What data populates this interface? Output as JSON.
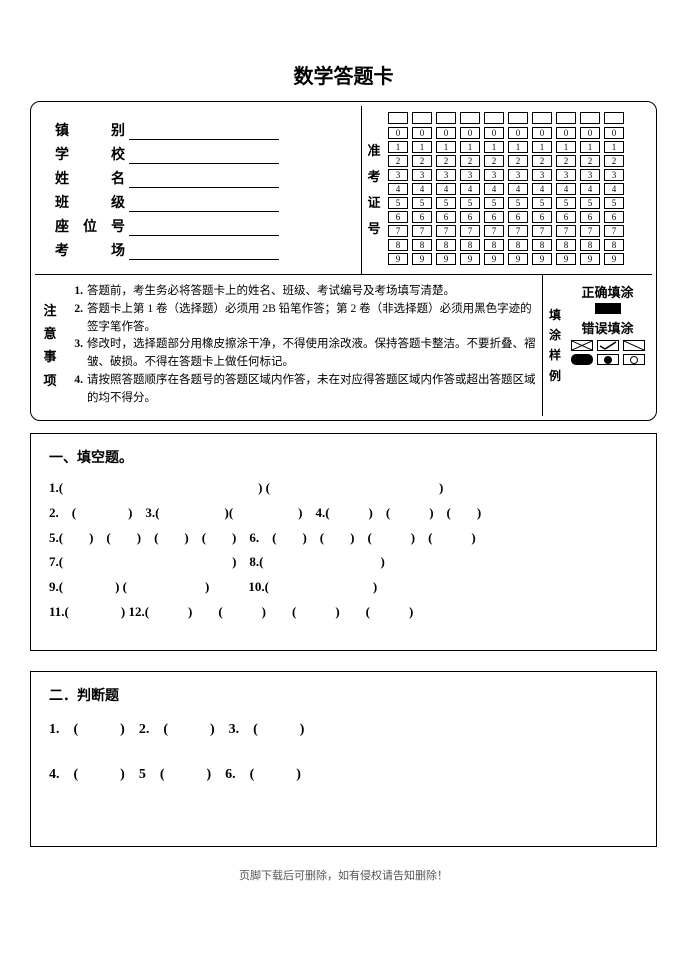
{
  "title": "数学答题卡",
  "info_labels": {
    "l1a": "镇",
    "l1b": "别",
    "l2a": "学",
    "l2b": "校",
    "l3a": "姓",
    "l3b": "名",
    "l4a": "班",
    "l4b": "级",
    "l5a": "座",
    "l5m": "位",
    "l5b": "号",
    "l6a": "考",
    "l6b": "场"
  },
  "exam_no_label": {
    "c1": "准",
    "c2": "考",
    "c3": "证",
    "c4": "号"
  },
  "bubble_digits": [
    "0",
    "1",
    "2",
    "3",
    "4",
    "5",
    "6",
    "7",
    "8",
    "9"
  ],
  "bubble_cols": 10,
  "instr_label": {
    "c1": "注",
    "c2": "意",
    "c3": "事",
    "c4": "项"
  },
  "instructions": {
    "n1": "1.",
    "t1": "答题前，考生务必将答题卡上的姓名、班级、考试编号及考场填写清楚。",
    "n2": "2.",
    "t2": "答题卡上第 1 卷（选择题）必须用 2B 铅笔作答；第 2 卷（非选择题）必须用黑色字迹的签字笔作答。",
    "n3": "3.",
    "t3": "修改时，选择题部分用橡皮擦涂干净，不得使用涂改液。保持答题卡整洁。不要折叠、褶皱、破损。不得在答题卡上做任何标记。",
    "n4": "4.",
    "t4": "请按照答题顺序在各题号的答题区域内作答，未在对应得答题区域内作答或超出答题区域的均不得分。"
  },
  "sample_label": {
    "c1": "填",
    "c2": "涂",
    "c3": "样",
    "c4": "例"
  },
  "sample": {
    "correct": "正确填涂",
    "wrong": "错误填涂"
  },
  "section1": {
    "title": "一、填空题。",
    "line1": "1.(　　　　　　　　　　　　　　　) (　　　　　　　　　　　　　)",
    "line2": "2. (　　　　) 3.(　　　　　)(　　　　　) 4.(　　　) (　　　) (　　)",
    "line3": "5.(　　) (　　) (　　) (　　) 6. (　　) (　　) (　　　) (　　　)",
    "line4": "7.(　　　　　　　　　　　　　) 8.(　　　　　　　　　)",
    "line5": "9.(　　　　) (　　　　　　)　　　10.(　　　　　　　　)",
    "line6": "11.(　　　　) 12.(　　　)　　(　　　)　　(　　　)　　(　　　)"
  },
  "section2": {
    "title": "二．判断题",
    "line1": "1. (　　　) 2. (　　　) 3. (　　　)",
    "line2": "4. (　　　) 5 (　　　) 6. (　　　)"
  },
  "footer": "页脚下载后可删除，如有侵权请告知删除！"
}
